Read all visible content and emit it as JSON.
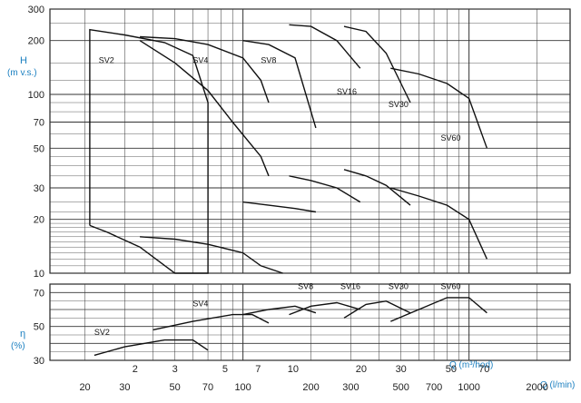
{
  "chart_data": {
    "type": "line",
    "title": "",
    "top_panel": {
      "ylabel": "H",
      "ylabel_unit": "(m v.s.)",
      "yscale": "log",
      "ylim": [
        10,
        300
      ],
      "yticks": [
        "300",
        "200",
        "100",
        "70",
        "50",
        "30",
        "20",
        "10"
      ],
      "series": [
        {
          "name": "SV2",
          "label_pos_q_lmin": 23,
          "label_pos_h": 150,
          "envelope_q_lmin": [
            21,
            21,
            30,
            45,
            60,
            70,
            70,
            50,
            35,
            25,
            21
          ],
          "envelope_h": [
            18.5,
            230,
            215,
            195,
            165,
            90,
            10,
            10,
            14,
            17,
            18.5
          ]
        },
        {
          "name": "SV4",
          "label_pos_q_lmin": 60,
          "label_pos_h": 150,
          "curves": [
            {
              "q_lmin": [
                35,
                50,
                70,
                100,
                120,
                130
              ],
              "h": [
                210,
                205,
                190,
                160,
                120,
                90
              ]
            },
            {
              "q_lmin": [
                35,
                50,
                70,
                100,
                120,
                150
              ],
              "h": [
                16,
                15.5,
                14.5,
                13,
                11,
                10
              ]
            },
            {
              "q_lmin": [
                35,
                50,
                70,
                90,
                120,
                130
              ],
              "h": [
                200,
                150,
                105,
                70,
                45,
                35
              ]
            }
          ]
        },
        {
          "name": "SV8",
          "label_pos_q_lmin": 120,
          "label_pos_h": 150,
          "curves": [
            {
              "q_lmin": [
                100,
                130,
                170,
                210
              ],
              "h": [
                200,
                190,
                160,
                65
              ]
            },
            {
              "q_lmin": [
                100,
                130,
                170,
                210
              ],
              "h": [
                25,
                24,
                23,
                22
              ]
            }
          ]
        },
        {
          "name": "SV16",
          "label_pos_q_lmin": 260,
          "label_pos_h": 100,
          "curves": [
            {
              "q_lmin": [
                160,
                200,
                260,
                330
              ],
              "h": [
                245,
                240,
                200,
                140
              ]
            },
            {
              "q_lmin": [
                160,
                200,
                260,
                330
              ],
              "h": [
                35,
                33,
                30,
                25
              ]
            }
          ]
        },
        {
          "name": "SV30",
          "label_pos_q_lmin": 440,
          "label_pos_h": 85,
          "curves": [
            {
              "q_lmin": [
                280,
                350,
                430,
                550
              ],
              "h": [
                240,
                225,
                170,
                90
              ]
            },
            {
              "q_lmin": [
                280,
                350,
                430,
                550
              ],
              "h": [
                38,
                35,
                31,
                24
              ]
            }
          ]
        },
        {
          "name": "SV60",
          "label_pos_q_lmin": 750,
          "label_pos_h": 55,
          "curves": [
            {
              "q_lmin": [
                450,
                600,
                800,
                1000,
                1200
              ],
              "h": [
                140,
                130,
                115,
                95,
                50
              ]
            },
            {
              "q_lmin": [
                450,
                600,
                800,
                1000,
                1200
              ],
              "h": [
                30,
                27,
                24,
                20,
                12
              ]
            }
          ]
        }
      ]
    },
    "bottom_panel": {
      "ylabel": "η",
      "ylabel_unit": "(%)",
      "ylim": [
        30,
        75
      ],
      "yticks": [
        "70",
        "50",
        "30"
      ],
      "series": [
        {
          "name": "SV2",
          "q_lmin": [
            22,
            30,
            45,
            60,
            70
          ],
          "eff": [
            33,
            38,
            42,
            42,
            36
          ]
        },
        {
          "name": "SV4",
          "q_lmin": [
            40,
            60,
            90,
            110,
            130
          ],
          "eff": [
            48,
            53,
            57,
            57,
            52
          ]
        },
        {
          "name": "SV8",
          "q_lmin": [
            100,
            130,
            170,
            210
          ],
          "eff": [
            57,
            60,
            62,
            58
          ]
        },
        {
          "name": "SV16",
          "q_lmin": [
            160,
            200,
            260,
            330
          ],
          "eff": [
            57,
            62,
            64,
            60
          ]
        },
        {
          "name": "SV30",
          "q_lmin": [
            280,
            350,
            430,
            550
          ],
          "eff": [
            55,
            63,
            65,
            58
          ]
        },
        {
          "name": "SV60",
          "q_lmin": [
            450,
            600,
            800,
            1000,
            1200
          ],
          "eff": [
            53,
            60,
            67,
            67,
            58
          ]
        }
      ]
    },
    "x_axis_m3h": {
      "label": "Q (m³/hod)",
      "ticks": [
        "2",
        "3",
        "5",
        "7",
        "10",
        "20",
        "30",
        "50",
        "70"
      ]
    },
    "x_axis_lmin": {
      "label": "Q (l/min)",
      "scale": "log",
      "ticks": [
        "20",
        "30",
        "50",
        "70",
        "100",
        "200",
        "300",
        "500",
        "700",
        "1000",
        "2000"
      ]
    }
  }
}
